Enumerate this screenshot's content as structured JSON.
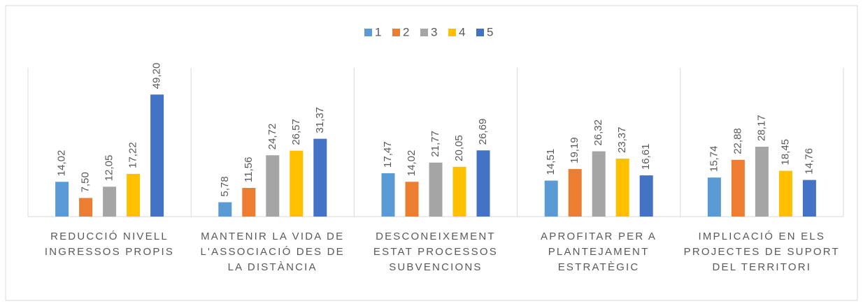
{
  "chart_data": {
    "type": "bar",
    "categories": [
      "REDUCCIÓ NIVELL INGRESSOS PROPIS",
      "MANTENIR LA VIDA DE L'ASSOCIACIÓ DES DE LA DISTÀNCIA",
      "DESCONEIXEMENT ESTAT PROCESSOS SUBVENCIONS",
      "APROFITAR PER A PLANTEJAMENT ESTRATÈGIC",
      "IMPLICACIÓ EN ELS PROJECTES DE SUPORT DEL TERRITORI"
    ],
    "series": [
      {
        "name": "1",
        "color": "#5b9bd5",
        "values": [
          14.02,
          5.78,
          17.47,
          14.51,
          15.74
        ],
        "value_labels": [
          "14,02",
          "5,78",
          "17,47",
          "14,51",
          "15,74"
        ]
      },
      {
        "name": "2",
        "color": "#ed7d31",
        "values": [
          7.5,
          11.56,
          14.02,
          19.19,
          22.88
        ],
        "value_labels": [
          "7,50",
          "11,56",
          "14,02",
          "19,19",
          "22,88"
        ]
      },
      {
        "name": "3",
        "color": "#a5a5a5",
        "values": [
          12.05,
          24.72,
          21.77,
          26.32,
          28.17
        ],
        "value_labels": [
          "12,05",
          "24,72",
          "21,77",
          "26,32",
          "28,17"
        ]
      },
      {
        "name": "4",
        "color": "#ffc000",
        "values": [
          17.22,
          26.57,
          20.05,
          23.37,
          18.45
        ],
        "value_labels": [
          "17,22",
          "26,57",
          "20,05",
          "23,37",
          "18,45"
        ]
      },
      {
        "name": "5",
        "color": "#4472c4",
        "values": [
          49.2,
          31.37,
          26.69,
          16.61,
          14.76
        ],
        "value_labels": [
          "49,20",
          "31,37",
          "26,69",
          "16,61",
          "14,76"
        ]
      }
    ],
    "ylim": [
      0,
      60
    ],
    "legend": "top"
  }
}
